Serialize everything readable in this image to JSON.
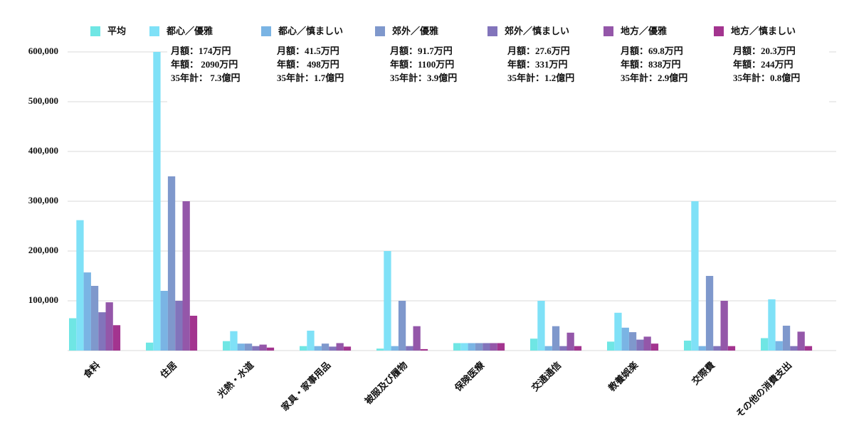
{
  "chart_data": {
    "type": "bar",
    "categories": [
      "食料",
      "住居",
      "光熱・水道",
      "家具・家事用品",
      "被服及び履物",
      "保険医療",
      "交通通信",
      "教養娯楽",
      "交際費",
      "その他の消費支出"
    ],
    "series": [
      {
        "name": "平均",
        "color": "#6fe6e4",
        "values": [
          65000,
          16000,
          19000,
          9000,
          4000,
          15000,
          24000,
          18000,
          20000,
          25000
        ]
      },
      {
        "name": "都心／優雅",
        "color": "#7fe1f7",
        "values": [
          262000,
          600000,
          39000,
          40000,
          200000,
          15000,
          100000,
          76000,
          300000,
          103000
        ]
      },
      {
        "name": "都心／慎ましい",
        "color": "#7ab4e4",
        "values": [
          157000,
          120000,
          14000,
          9000,
          9000,
          15000,
          9000,
          46000,
          9000,
          19000
        ]
      },
      {
        "name": "郊外／優雅",
        "color": "#7f98cc",
        "values": [
          130000,
          350000,
          14000,
          14000,
          100000,
          15000,
          49000,
          37000,
          150000,
          50000
        ]
      },
      {
        "name": "郊外／慎ましい",
        "color": "#8274bb",
        "values": [
          77000,
          100000,
          9000,
          8000,
          9000,
          15000,
          9000,
          22000,
          9000,
          9000
        ]
      },
      {
        "name": "地方／優雅",
        "color": "#9457a9",
        "values": [
          97000,
          300000,
          12000,
          15000,
          49000,
          15000,
          36000,
          28000,
          100000,
          38000
        ]
      },
      {
        "name": "地方／慎ましい",
        "color": "#a3348f",
        "values": [
          51000,
          70000,
          6000,
          8000,
          3000,
          15000,
          9000,
          14000,
          9000,
          9000
        ]
      }
    ],
    "annotations": [
      [
        "月額：174万円",
        "年額： 2090万円",
        "35年計： 7.3億円"
      ],
      [
        "月額：41.5万円",
        "年額： 498万円",
        "35年計：1.7億円"
      ],
      [
        "月額：91.7万円",
        "年額：1100万円",
        "35年計：3.9億円"
      ],
      [
        "月額：27.6万円",
        "年額：331万円",
        "35年計：1.2億円"
      ],
      [
        "月額：69.8万円",
        "年額：838万円",
        "35年計：2.9億円"
      ],
      [
        "月額：20.3万円",
        "年額：244万円",
        "35年計：0.8億円"
      ]
    ],
    "ylim": [
      0,
      600000
    ],
    "yticks": [
      {
        "value": 100000,
        "label": "100,000"
      },
      {
        "value": 200000,
        "label": "200,000"
      },
      {
        "value": 300000,
        "label": "300,000"
      },
      {
        "value": 400000,
        "label": "400,000"
      },
      {
        "value": 500000,
        "label": "500,000"
      },
      {
        "value": 600000,
        "label": "600,000"
      }
    ],
    "grid": true,
    "legend": "top"
  }
}
